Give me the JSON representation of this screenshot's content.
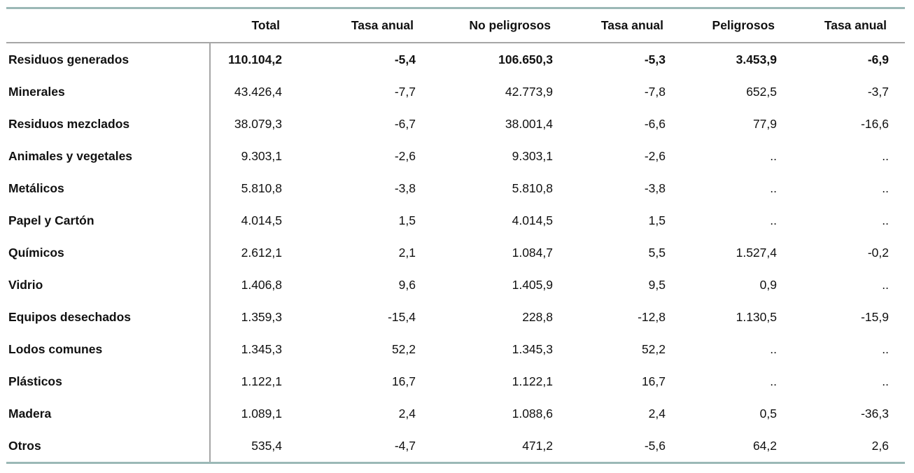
{
  "chart_data": {
    "type": "table",
    "columns": [
      "",
      "Total",
      "Tasa anual",
      "No peligrosos",
      "Tasa anual",
      "Peligrosos",
      "Tasa anual"
    ],
    "rows": [
      {
        "label": "Residuos generados",
        "values": [
          "110.104,2",
          "-5,4",
          "106.650,3",
          "-5,3",
          "3.453,9",
          "-6,9"
        ],
        "bold": true
      },
      {
        "label": "Minerales",
        "values": [
          "43.426,4",
          "-7,7",
          "42.773,9",
          "-7,8",
          "652,5",
          "-3,7"
        ],
        "bold": false
      },
      {
        "label": "Residuos mezclados",
        "values": [
          "38.079,3",
          "-6,7",
          "38.001,4",
          "-6,6",
          "77,9",
          "-16,6"
        ],
        "bold": false
      },
      {
        "label": "Animales y vegetales",
        "values": [
          "9.303,1",
          "-2,6",
          "9.303,1",
          "-2,6",
          "..",
          ".."
        ],
        "bold": false
      },
      {
        "label": "Metálicos",
        "values": [
          "5.810,8",
          "-3,8",
          "5.810,8",
          "-3,8",
          "..",
          ".."
        ],
        "bold": false
      },
      {
        "label": "Papel y Cartón",
        "values": [
          "4.014,5",
          "1,5",
          "4.014,5",
          "1,5",
          "..",
          ".."
        ],
        "bold": false
      },
      {
        "label": "Químicos",
        "values": [
          "2.612,1",
          "2,1",
          "1.084,7",
          "5,5",
          "1.527,4",
          "-0,2"
        ],
        "bold": false
      },
      {
        "label": "Vidrio",
        "values": [
          "1.406,8",
          "9,6",
          "1.405,9",
          "9,5",
          "0,9",
          ".."
        ],
        "bold": false
      },
      {
        "label": "Equipos desechados",
        "values": [
          "1.359,3",
          "-15,4",
          "228,8",
          "-12,8",
          "1.130,5",
          "-15,9"
        ],
        "bold": false
      },
      {
        "label": "Lodos comunes",
        "values": [
          "1.345,3",
          "52,2",
          "1.345,3",
          "52,2",
          "..",
          ".."
        ],
        "bold": false
      },
      {
        "label": "Plásticos",
        "values": [
          "1.122,1",
          "16,7",
          "1.122,1",
          "16,7",
          "..",
          ".."
        ],
        "bold": false
      },
      {
        "label": "Madera",
        "values": [
          "1.089,1",
          "2,4",
          "1.088,6",
          "2,4",
          "0,5",
          "-36,3"
        ],
        "bold": false
      },
      {
        "label": "Otros",
        "values": [
          "535,4",
          "-4,7",
          "471,2",
          "-5,6",
          "64,2",
          "2,6"
        ],
        "bold": false
      }
    ]
  },
  "colors": {
    "rule_teal": "#9bb8b6",
    "rule_gray": "#a6a6a6"
  }
}
